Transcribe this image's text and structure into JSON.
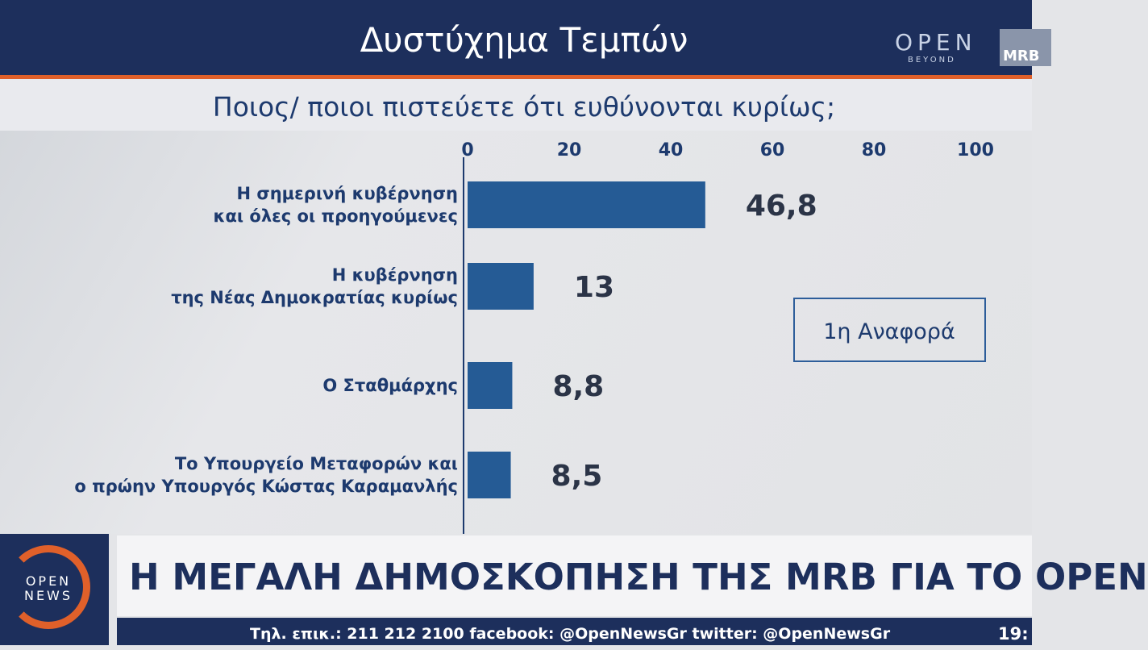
{
  "header": {
    "title": "Δυστύχημα Τεμπών",
    "logo": "OPEN",
    "logo_sub": "BEYOND",
    "corner": "MRB"
  },
  "chart_data": {
    "type": "bar",
    "orientation": "horizontal",
    "title": "Ποιος/ ποιοι πιστεύετε ότι ευθύνονται κυρίως;",
    "categories": [
      "Η σημερινή κυβέρνηση\nκαι όλες οι προηγούμενες",
      "Η κυβέρνηση\nτης Νέας Δημοκρατίας κυρίως",
      "Ο Σταθμάρχης",
      "Το Υπουργείο Μεταφορών και\nο πρώην Υπουργός Κώστας Καραμανλής"
    ],
    "values": [
      46.8,
      13,
      8.8,
      8.5
    ],
    "value_labels": [
      "46,8",
      "13",
      "8,8",
      "8,5"
    ],
    "color": "#255b95",
    "xlim": [
      0,
      100
    ],
    "xticks": [
      0,
      20,
      40,
      60,
      80,
      100
    ],
    "annotation": "1η Αναφορά"
  },
  "footer": {
    "logo": "OPEN\nNEWS",
    "headline": "Η ΜΕΓΑΛΗ ΔΗΜΟΣΚΟΠΗΣΗ ΤΗΣ MRB ΓΙΑ ΤΟ OPEN",
    "ticker": "Τηλ. επικ.: 211 212 2100 facebook: @OpenNewsGr twitter: @OpenNewsGr",
    "time": "19:"
  }
}
